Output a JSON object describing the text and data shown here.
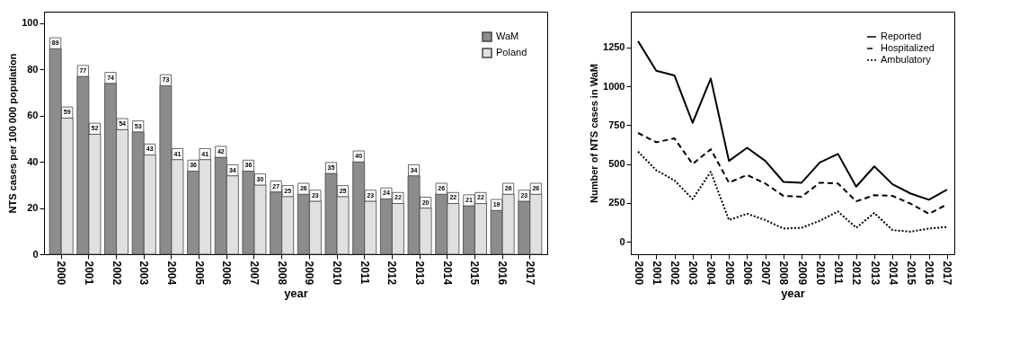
{
  "chart_data": [
    {
      "type": "bar",
      "xlabel": "year",
      "ylabel": "NTS cases per 100 000 population",
      "categories": [
        "2000",
        "2001",
        "2002",
        "2003",
        "2004",
        "2005",
        "2006",
        "2007",
        "2008",
        "2009",
        "2010",
        "2011",
        "2012",
        "2013",
        "2014",
        "2015",
        "2016",
        "2017"
      ],
      "series": [
        {
          "name": "WaM",
          "color": "#8c8c8c",
          "values": [
            89,
            77,
            74,
            53,
            73,
            36,
            42,
            36,
            27,
            26,
            35,
            40,
            24,
            34,
            26,
            21,
            19,
            23
          ]
        },
        {
          "name": "Poland",
          "color": "#e0e0e0",
          "values": [
            59,
            52,
            54,
            43,
            41,
            41,
            34,
            30,
            25,
            23,
            25,
            23,
            22,
            20,
            22,
            22,
            26,
            26
          ]
        }
      ],
      "ylim": [
        0,
        105
      ],
      "yticks": [
        0,
        20,
        40,
        60,
        80,
        100
      ],
      "grid": false,
      "legend": "top right",
      "data_labels": true
    },
    {
      "type": "line",
      "xlabel": "year",
      "ylabel": "Number of NTS cases in WaM",
      "categories": [
        "2000",
        "2001",
        "2002",
        "2003",
        "2004",
        "2005",
        "2006",
        "2007",
        "2008",
        "2009",
        "2010",
        "2011",
        "2012",
        "2013",
        "2014",
        "2015",
        "2016",
        "2017"
      ],
      "series": [
        {
          "name": "Reported",
          "color": "#000000",
          "line_style": "solid",
          "values": [
            1290,
            1100,
            1070,
            765,
            1050,
            520,
            605,
            520,
            385,
            380,
            510,
            565,
            355,
            485,
            370,
            310,
            270,
            335
          ]
        },
        {
          "name": "Hospitalized",
          "color": "#000000",
          "line_style": "dashed",
          "values": [
            700,
            640,
            665,
            500,
            595,
            380,
            430,
            375,
            295,
            290,
            380,
            375,
            260,
            300,
            295,
            245,
            180,
            240
          ]
        },
        {
          "name": "Ambulatory",
          "color": "#000000",
          "line_style": "dotted",
          "values": [
            580,
            460,
            395,
            275,
            450,
            140,
            180,
            140,
            85,
            90,
            135,
            195,
            90,
            185,
            75,
            65,
            85,
            95
          ]
        }
      ],
      "ylim": [
        -80,
        1480
      ],
      "yticks": [
        0,
        250,
        500,
        750,
        1000,
        1250
      ],
      "grid": false,
      "legend": "top right"
    }
  ]
}
